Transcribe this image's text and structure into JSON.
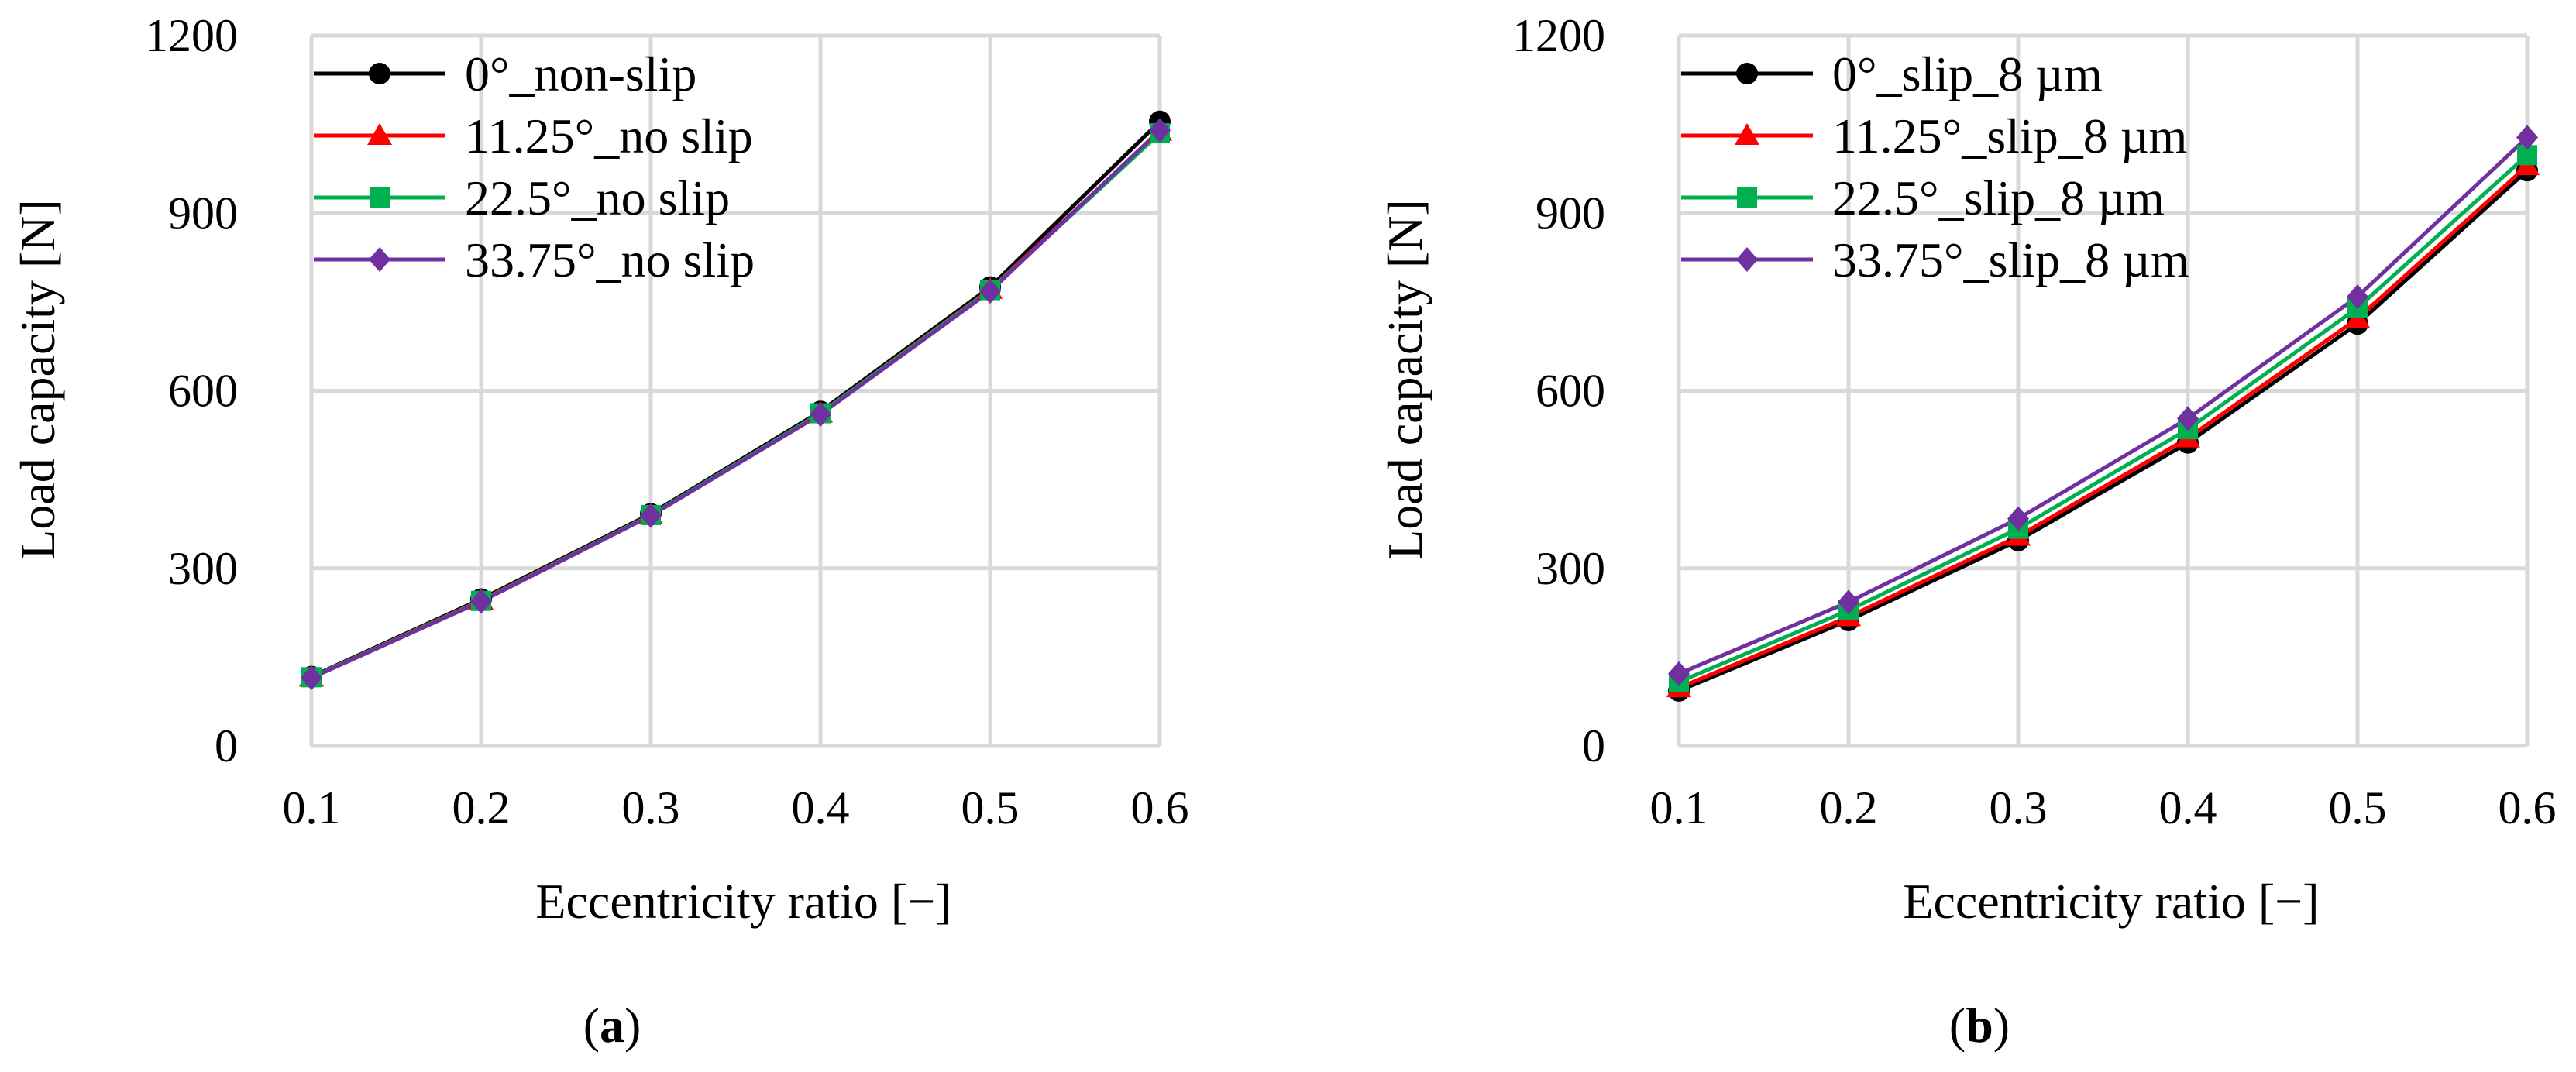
{
  "chart_data": [
    {
      "type": "line",
      "panel_label": {
        "open": "(",
        "letter": "a",
        "close": ")"
      },
      "xlabel": "Eccentricity ratio [−]",
      "ylabel": "Load capacity [N]",
      "x": [
        0.1,
        0.2,
        0.3,
        0.4,
        0.5,
        0.6
      ],
      "x_tick_labels": [
        "0.1",
        "0.2",
        "0.3",
        "0.4",
        "0.5",
        "0.6"
      ],
      "xlim": [
        0.1,
        0.6
      ],
      "ylim": [
        0,
        1200
      ],
      "y_ticks": [
        0,
        300,
        600,
        900,
        1200
      ],
      "y_tick_labels": [
        "0",
        "300",
        "600",
        "900",
        "1200"
      ],
      "grid": true,
      "legend_position": "top-left",
      "series": [
        {
          "name": "0°_non-slip",
          "color": "#000000",
          "marker": "circle",
          "values": [
            117,
            248,
            392,
            565,
            775,
            1055
          ]
        },
        {
          "name": "11.25°_no slip",
          "color": "#ff0000",
          "marker": "triangle",
          "values": [
            116,
            246,
            390,
            562,
            771,
            1038
          ]
        },
        {
          "name": "22.5°_no slip",
          "color": "#00b050",
          "marker": "square",
          "values": [
            116,
            245,
            390,
            562,
            770,
            1035
          ]
        },
        {
          "name": "33.75°_no slip",
          "color": "#7030a0",
          "marker": "diamond",
          "values": [
            115,
            244,
            389,
            560,
            768,
            1040
          ]
        }
      ]
    },
    {
      "type": "line",
      "panel_label": {
        "open": "(",
        "letter": "b",
        "close": ")"
      },
      "xlabel": "Eccentricity ratio [−]",
      "ylabel": "Load capacity [N]",
      "x": [
        0.1,
        0.2,
        0.3,
        0.4,
        0.5,
        0.6
      ],
      "x_tick_labels": [
        "0.1",
        "0.2",
        "0.3",
        "0.4",
        "0.5",
        "0.6"
      ],
      "xlim": [
        0.1,
        0.6
      ],
      "ylim": [
        0,
        1200
      ],
      "y_ticks": [
        0,
        300,
        600,
        900,
        1200
      ],
      "y_tick_labels": [
        "0",
        "300",
        "600",
        "900",
        "1200"
      ],
      "grid": true,
      "legend_position": "top-left",
      "series": [
        {
          "name": "0°_slip_8 µm",
          "color": "#000000",
          "marker": "circle",
          "values": [
            93,
            212,
            347,
            512,
            713,
            972
          ]
        },
        {
          "name": "11.25°_slip_8 µm",
          "color": "#ff0000",
          "marker": "triangle",
          "values": [
            98,
            218,
            354,
            520,
            722,
            980
          ]
        },
        {
          "name": "22.5°_slip_8 µm",
          "color": "#00b050",
          "marker": "square",
          "values": [
            108,
            229,
            367,
            535,
            740,
            998
          ]
        },
        {
          "name": "33.75°_slip_8 µm",
          "color": "#7030a0",
          "marker": "diamond",
          "values": [
            122,
            243,
            384,
            553,
            759,
            1028
          ]
        }
      ]
    }
  ]
}
